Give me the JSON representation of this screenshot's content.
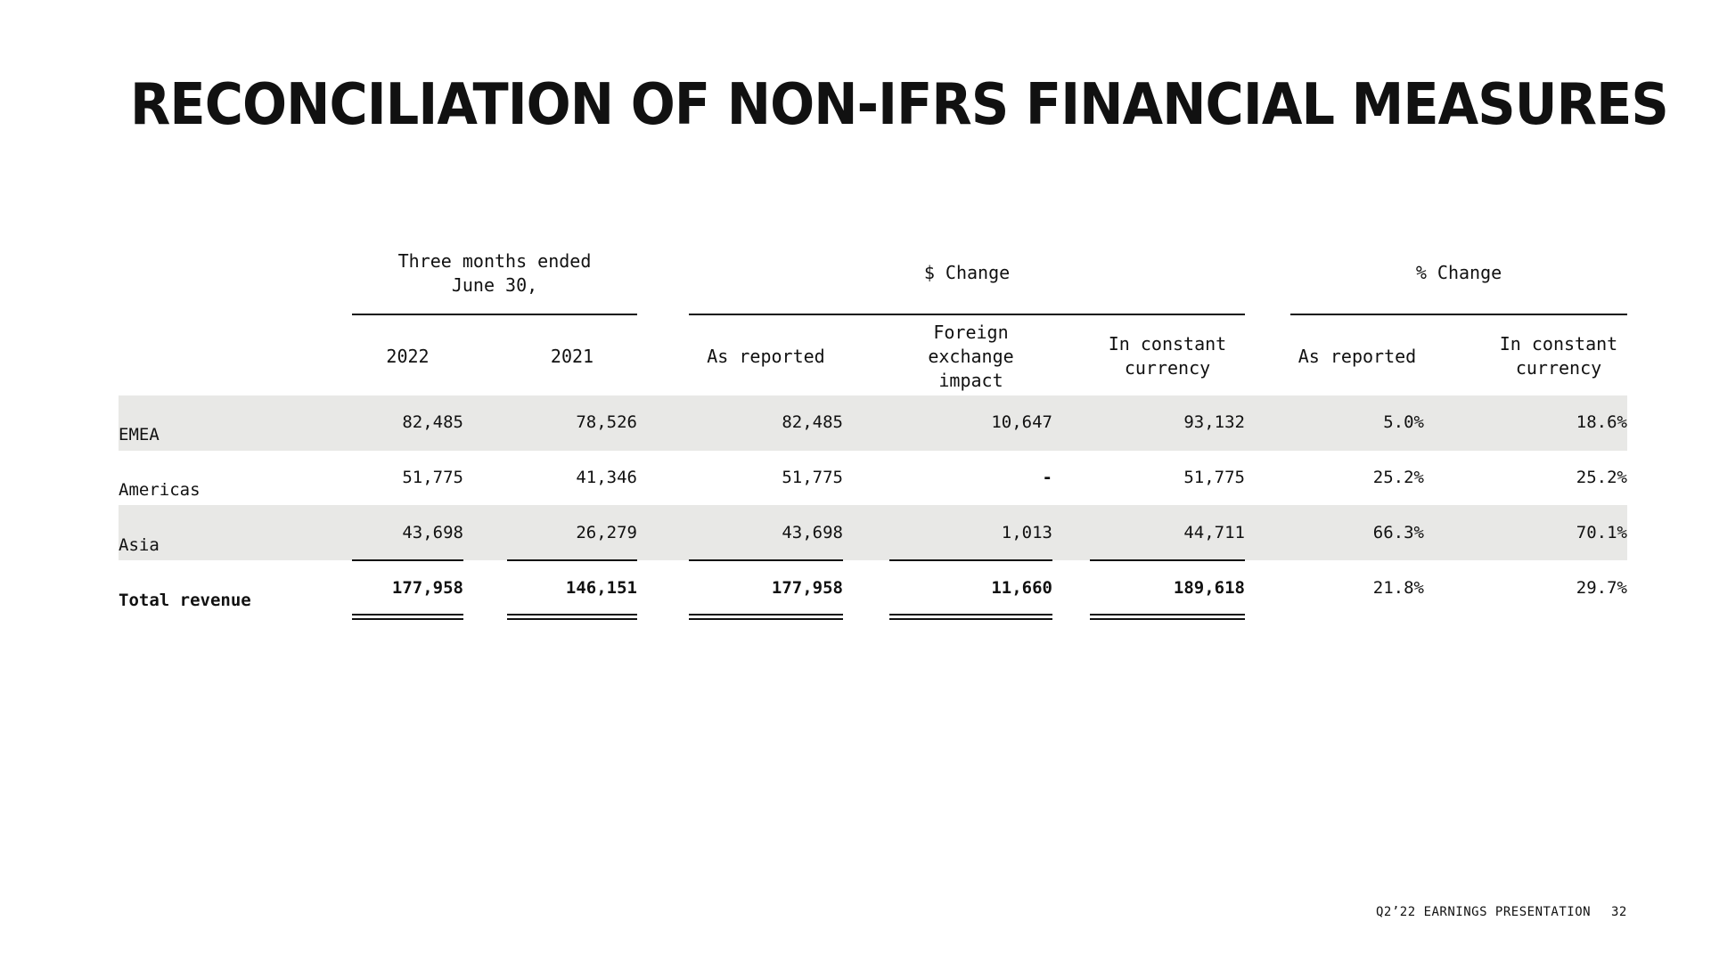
{
  "title": "RECONCILIATION OF NON-IFRS FINANCIAL MEASURES",
  "group_headers": {
    "period": "Three months ended\nJune 30,",
    "dollar_change": "$ Change",
    "pct_change": "% Change"
  },
  "columns": [
    "2022",
    "2021",
    "As reported",
    "Foreign\nexchange\nimpact",
    "In constant\ncurrency",
    "As reported",
    "In constant\ncurrency"
  ],
  "rows": [
    {
      "label": "EMEA",
      "values": [
        "82,485",
        "78,526",
        "82,485",
        "10,647",
        "93,132",
        "5.0%",
        "18.6%"
      ]
    },
    {
      "label": "Americas",
      "values": [
        "51,775",
        "41,346",
        "51,775",
        "-",
        "51,775",
        "25.2%",
        "25.2%"
      ]
    },
    {
      "label": "Asia",
      "values": [
        "43,698",
        "26,279",
        "43,698",
        "1,013",
        "44,711",
        "66.3%",
        "70.1%"
      ]
    },
    {
      "label": "Total revenue",
      "values": [
        "177,958",
        "146,151",
        "177,958",
        "11,660",
        "189,618",
        "21.8%",
        "29.7%"
      ]
    }
  ],
  "footer": {
    "presentation": "Q2’22 EARNINGS PRESENTATION",
    "page_number": "32"
  }
}
